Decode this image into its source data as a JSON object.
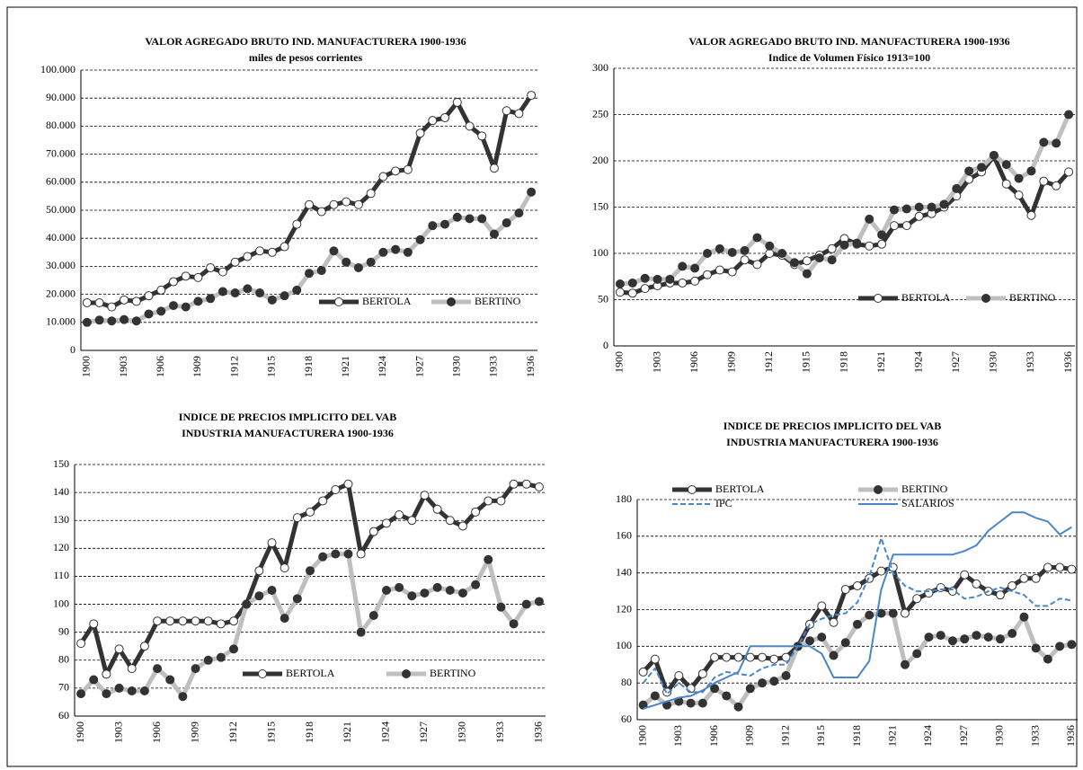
{
  "chart_data": [
    {
      "type": "line",
      "title": "VALOR AGREGADO BRUTO IND. MANUFACTURERA 1900-1936",
      "subtitle": "miles de pesos corrientes",
      "categories": [
        "1900",
        null,
        null,
        "1903",
        null,
        null,
        "1906",
        null,
        null,
        "1909",
        null,
        null,
        "1912",
        null,
        null,
        "1915",
        null,
        null,
        "1918",
        null,
        null,
        "1921",
        null,
        null,
        "1924",
        null,
        null,
        "1927",
        null,
        null,
        "1930",
        null,
        null,
        "1933",
        null,
        null,
        "1936"
      ],
      "ylim": [
        0,
        100000
      ],
      "yticks": [
        0,
        {
          "value": 10000,
          "label": "10.000"
        },
        {
          "value": 20000,
          "label": "20.000"
        },
        {
          "value": 30000,
          "label": "30.000"
        },
        {
          "value": 40000,
          "label": "40.000"
        },
        {
          "value": 50000,
          "label": "50.000"
        },
        {
          "value": 60000,
          "label": "60.000"
        },
        {
          "value": 70000,
          "label": "70.000"
        },
        {
          "value": 80000,
          "label": "80.000"
        },
        {
          "value": 90000,
          "label": "90.000"
        },
        {
          "value": 100000,
          "label": "100.000"
        }
      ],
      "grid": true,
      "legend": "lower right",
      "series": [
        {
          "name": "BERTOLA",
          "color": "#333333",
          "marker_color": "#ffffff",
          "values": [
            17000,
            17000,
            15500,
            18000,
            17500,
            19500,
            21500,
            24500,
            26500,
            26000,
            29500,
            28000,
            31500,
            33500,
            35500,
            35000,
            37000,
            45000,
            52000,
            49500,
            52000,
            53000,
            52000,
            56000,
            62000,
            64000,
            64500,
            77500,
            82000,
            83000,
            88500,
            80000,
            76500,
            65000,
            85500,
            84500,
            91000
          ]
        },
        {
          "name": "BERTINO",
          "color": "#bfbfbf",
          "marker_color": "#333333",
          "values": [
            10000,
            10800,
            10500,
            11000,
            10500,
            13000,
            14000,
            16000,
            15500,
            17500,
            18500,
            21000,
            20500,
            22000,
            20500,
            18000,
            19500,
            21500,
            27500,
            28500,
            35500,
            31500,
            29500,
            31500,
            35000,
            36000,
            35000,
            39500,
            44500,
            45000,
            47500,
            47000,
            47000,
            41500,
            45500,
            49000,
            56500
          ]
        }
      ]
    },
    {
      "type": "line",
      "title": "VALOR AGREGADO BRUTO IND. MANUFACTURERA 1900-1936",
      "subtitle": "Indice de Volumen Físico 1913=100",
      "categories": [
        "1900",
        null,
        null,
        "1903",
        null,
        null,
        "1906",
        null,
        null,
        "1909",
        null,
        null,
        "1912",
        null,
        null,
        "1915",
        null,
        null,
        "1918",
        null,
        null,
        "1921",
        null,
        null,
        "1924",
        null,
        null,
        "1927",
        null,
        null,
        "1930",
        null,
        null,
        "1933",
        null,
        null,
        "1936"
      ],
      "ylim": [
        0,
        300
      ],
      "yticks": [
        0,
        50,
        100,
        150,
        200,
        250,
        300
      ],
      "grid": true,
      "legend": "lower right",
      "series": [
        {
          "name": "BERTOLA",
          "color": "#333333",
          "marker_color": "#ffffff",
          "values": [
            58,
            57,
            62,
            65,
            68,
            68,
            70,
            77,
            82,
            80,
            93,
            88,
            100,
            98,
            88,
            92,
            98,
            105,
            116,
            110,
            108,
            110,
            130,
            130,
            140,
            143,
            150,
            162,
            180,
            188,
            205,
            175,
            163,
            141,
            178,
            173,
            188
          ]
        },
        {
          "name": "BERTINO",
          "color": "#bfbfbf",
          "marker_color": "#333333",
          "values": [
            67,
            68,
            73,
            72,
            72,
            86,
            84,
            100,
            105,
            101,
            103,
            117,
            108,
            100,
            90,
            78,
            95,
            93,
            109,
            111,
            137,
            120,
            147,
            148,
            150,
            150,
            153,
            170,
            189,
            193,
            206,
            196,
            181,
            189,
            220,
            219,
            250
          ]
        }
      ]
    },
    {
      "type": "line",
      "title": "INDICE DE PRECIOS IMPLICITO DEL VAB",
      "subtitle": "INDUSTRIA MANUFACTURERA 1900-1936",
      "categories": [
        "1900",
        null,
        null,
        "1903",
        null,
        null,
        "1906",
        null,
        null,
        "1909",
        null,
        null,
        "1912",
        null,
        null,
        "1915",
        null,
        null,
        "1918",
        null,
        null,
        "1921",
        null,
        null,
        "1924",
        null,
        null,
        "1927",
        null,
        null,
        "1930",
        null,
        null,
        "1933",
        null,
        null,
        "1936"
      ],
      "ylim": [
        60,
        150
      ],
      "yticks": [
        60,
        70,
        80,
        90,
        100,
        110,
        120,
        130,
        140,
        150
      ],
      "grid": true,
      "legend": "lower right",
      "series": [
        {
          "name": "BERTOLA",
          "color": "#333333",
          "marker_color": "#ffffff",
          "values": [
            86,
            93,
            75,
            84,
            77,
            85,
            94,
            94,
            94,
            94,
            94,
            93,
            94,
            100,
            112,
            122,
            113,
            131,
            133,
            137,
            141,
            143,
            118,
            126,
            129,
            132,
            130,
            139,
            134,
            130,
            128,
            133,
            137,
            137,
            143,
            143,
            142
          ]
        },
        {
          "name": "BERTINO",
          "color": "#bfbfbf",
          "marker_color": "#333333",
          "values": [
            68,
            73,
            68,
            70,
            69,
            69,
            77,
            73,
            67,
            77,
            80,
            81,
            84,
            100,
            103,
            105,
            95,
            102,
            112,
            117,
            118,
            118,
            90,
            96,
            105,
            106,
            103,
            104,
            106,
            105,
            104,
            107,
            116,
            99,
            93,
            100,
            101
          ]
        }
      ]
    },
    {
      "type": "line",
      "title": "INDICE DE PRECIOS IMPLICITO DEL VAB",
      "subtitle": "INDUSTRIA MANUFACTURERA 1900-1936",
      "categories": [
        "1900",
        null,
        null,
        "1903",
        null,
        null,
        "1906",
        null,
        null,
        "1909",
        null,
        null,
        "1912",
        null,
        null,
        "1915",
        null,
        null,
        "1918",
        null,
        null,
        "1921",
        null,
        null,
        "1924",
        null,
        null,
        "1927",
        null,
        null,
        "1930",
        null,
        null,
        "1933",
        null,
        null,
        "1936"
      ],
      "ylim": [
        60,
        180
      ],
      "yticks": [
        60,
        80,
        100,
        120,
        140,
        160,
        180
      ],
      "grid": true,
      "legend": "upper left",
      "series": [
        {
          "name": "BERTOLA",
          "color": "#333333",
          "marker_color": "#ffffff",
          "values": [
            86,
            93,
            75,
            84,
            77,
            85,
            94,
            94,
            94,
            94,
            94,
            93,
            94,
            100,
            112,
            122,
            113,
            131,
            133,
            137,
            141,
            143,
            118,
            126,
            129,
            132,
            130,
            139,
            134,
            130,
            128,
            133,
            137,
            137,
            143,
            143,
            142
          ]
        },
        {
          "name": "BERTINO",
          "color": "#bfbfbf",
          "marker_color": "#333333",
          "values": [
            68,
            73,
            68,
            70,
            69,
            69,
            77,
            73,
            67,
            77,
            80,
            81,
            84,
            100,
            103,
            105,
            95,
            102,
            112,
            117,
            118,
            118,
            90,
            96,
            105,
            106,
            103,
            104,
            106,
            105,
            104,
            107,
            116,
            99,
            93,
            100,
            101
          ]
        },
        {
          "name": "IPC",
          "color": "#4a86c8",
          "dashed": true,
          "values": [
            80,
            88,
            74,
            80,
            75,
            75,
            83,
            86,
            85,
            84,
            88,
            90,
            90,
            100,
            112,
            115,
            117,
            118,
            124,
            138,
            159,
            140,
            133,
            130,
            130,
            131,
            131,
            126,
            127,
            130,
            132,
            130,
            128,
            122,
            122,
            126,
            125
          ]
        },
        {
          "name": "SALARIOS",
          "color": "#4a86c8",
          "values": [
            66,
            68,
            70,
            72,
            73,
            76,
            80,
            83,
            86,
            100,
            100,
            100,
            100,
            100,
            100,
            96,
            83,
            83,
            83,
            92,
            131,
            150,
            150,
            150,
            150,
            150,
            150,
            152,
            155,
            163,
            168,
            173,
            173,
            170,
            168,
            161,
            165
          ]
        }
      ]
    }
  ]
}
